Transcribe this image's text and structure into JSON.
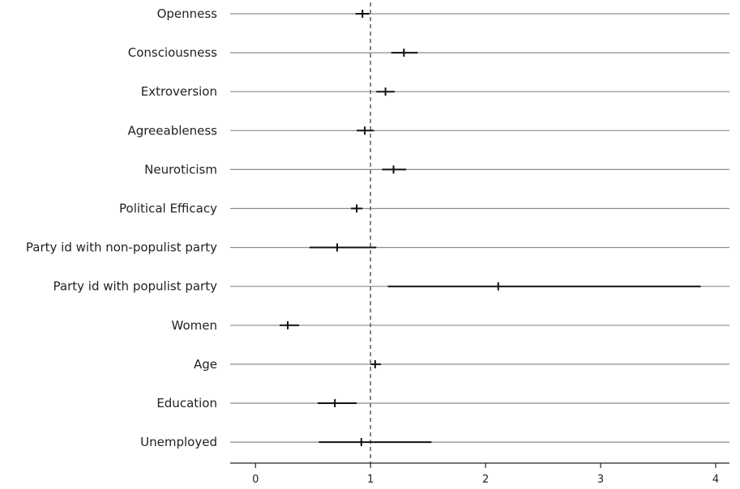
{
  "chart_data": {
    "type": "forest",
    "title": "",
    "xlabel": "",
    "ylabel": "",
    "xlim": [
      -0.22,
      4.12
    ],
    "xticks": [
      0,
      1,
      2,
      3,
      4
    ],
    "xtick_labels": [
      "0",
      "1",
      "2",
      "3",
      "4"
    ],
    "reference_line": 1,
    "grid": "horizontal row lines",
    "legend": "none",
    "rows": [
      {
        "label": "Openness",
        "estimate": 0.93,
        "lower": 0.87,
        "upper": 0.99
      },
      {
        "label": "Consciousness",
        "estimate": 1.29,
        "lower": 1.18,
        "upper": 1.41
      },
      {
        "label": "Extroversion",
        "estimate": 1.13,
        "lower": 1.05,
        "upper": 1.21
      },
      {
        "label": "Agreeableness",
        "estimate": 0.95,
        "lower": 0.88,
        "upper": 1.03
      },
      {
        "label": "Neuroticism",
        "estimate": 1.2,
        "lower": 1.1,
        "upper": 1.31
      },
      {
        "label": "Political Efficacy",
        "estimate": 0.88,
        "lower": 0.83,
        "upper": 0.93
      },
      {
        "label": "Party id with non-populist party",
        "estimate": 0.71,
        "lower": 0.47,
        "upper": 1.05
      },
      {
        "label": "Party id with populist party",
        "estimate": 2.11,
        "lower": 1.15,
        "upper": 3.87
      },
      {
        "label": "Women",
        "estimate": 0.28,
        "lower": 0.21,
        "upper": 0.38
      },
      {
        "label": "Age",
        "estimate": 1.04,
        "lower": 1.0,
        "upper": 1.09
      },
      {
        "label": "Education",
        "estimate": 0.69,
        "lower": 0.54,
        "upper": 0.88
      },
      {
        "label": "Unemployed",
        "estimate": 0.92,
        "lower": 0.55,
        "upper": 1.53
      }
    ]
  }
}
